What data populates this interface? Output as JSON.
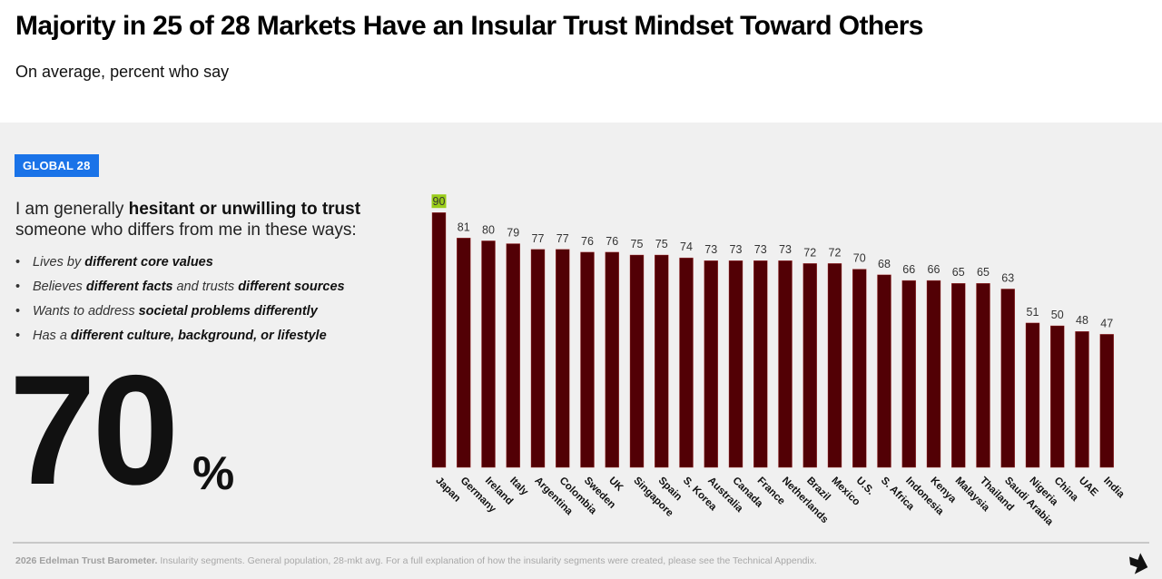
{
  "header": {
    "title": "Majority in 25 of 28 Markets Have an Insular Trust Mindset Toward Others",
    "subtitle": "On average, percent who say"
  },
  "left_panel": {
    "badge": "GLOBAL 28",
    "statement_pre": "I am generally ",
    "statement_bold": "hesitant or unwilling to trust",
    "statement_post": " someone who differs from me in these ways:",
    "bullets": [
      {
        "pre": "Lives by ",
        "bold": "different core values",
        "mid": "",
        "bold2": "",
        "post": ""
      },
      {
        "pre": "Believes ",
        "bold": "different facts",
        "mid": " and trusts ",
        "bold2": "different sources",
        "post": ""
      },
      {
        "pre": "Wants to address ",
        "bold": "societal problems differently",
        "mid": "",
        "bold2": "",
        "post": ""
      },
      {
        "pre": "Has a ",
        "bold": "different culture, background, or lifestyle",
        "mid": "",
        "bold2": "",
        "post": ""
      }
    ],
    "big_number": "70",
    "big_number_unit": "%"
  },
  "colors": {
    "bar": "#520005",
    "highlight_label_bg": "#9acd1a",
    "badge_bg": "#1a73e8"
  },
  "chart_data": {
    "type": "bar",
    "title": "",
    "xlabel": "",
    "ylabel": "",
    "ylim": [
      0,
      100
    ],
    "grid": false,
    "legend": "none",
    "highlighted_category": "Japan",
    "categories": [
      "Japan",
      "Germany",
      "Ireland",
      "Italy",
      "Argentina",
      "Colombia",
      "Sweden",
      "UK",
      "Singapore",
      "Spain",
      "S. Korea",
      "Australia",
      "Canada",
      "France",
      "Netherlands",
      "Brazil",
      "Mexico",
      "U.S.",
      "S. Africa",
      "Indonesia",
      "Kenya",
      "Malaysia",
      "Thailand",
      "Saudi Arabia",
      "Nigeria",
      "China",
      "UAE",
      "India"
    ],
    "values": [
      90,
      81,
      80,
      79,
      77,
      77,
      76,
      76,
      75,
      75,
      74,
      73,
      73,
      73,
      73,
      72,
      72,
      70,
      68,
      66,
      66,
      65,
      65,
      63,
      51,
      50,
      48,
      47
    ]
  },
  "footer": {
    "source_bold": "2026 Edelman Trust Barometer.",
    "source_text": " Insularity segments. General population, 28-mkt avg. For a full explanation of how the insularity segments were created, please see the Technical Appendix.",
    "nav_icon": "arrow-right-down-icon"
  }
}
